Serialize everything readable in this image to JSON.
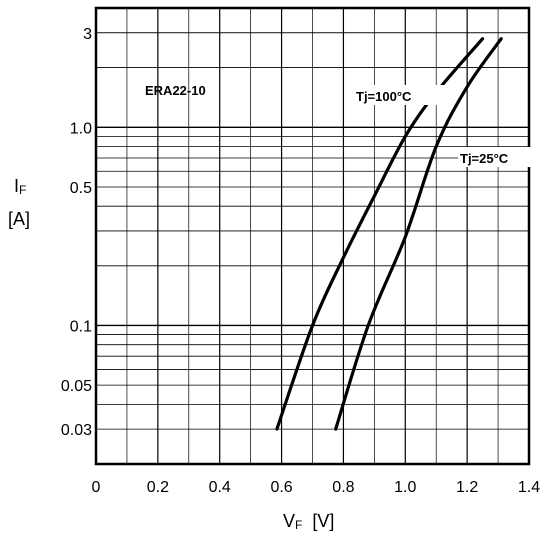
{
  "chart_data": {
    "type": "line",
    "xlabel": "V",
    "xlabel_sub": "F",
    "xunit": "[V]",
    "ylabel": "I",
    "ylabel_sub": "F",
    "yunit": "[A]",
    "xlim": [
      0,
      1.4
    ],
    "ylim": [
      0.02,
      4
    ],
    "yscale": "log",
    "grid": true,
    "x_ticks": [
      "0",
      "0.2",
      "0.4",
      "0.6",
      "0.8",
      "1.0",
      "1.2",
      "1.4"
    ],
    "y_ticks": [
      {
        "value": 3,
        "label": "3"
      },
      {
        "value": 1,
        "label": "1.0"
      },
      {
        "value": 0.5,
        "label": "0.5"
      },
      {
        "value": 0.1,
        "label": "0.1"
      },
      {
        "value": 0.05,
        "label": "0.05"
      },
      {
        "value": 0.03,
        "label": "0.03"
      }
    ],
    "annotations": {
      "device": "ERA22-10",
      "series1_label": "Tj=100°C",
      "series2_label": "Tj=25°C"
    },
    "series": [
      {
        "name": "Tj=100°C",
        "points": [
          [
            0.585,
            0.03
          ],
          [
            0.7,
            0.1
          ],
          [
            0.8,
            0.22
          ],
          [
            0.9,
            0.45
          ],
          [
            1.0,
            0.9
          ],
          [
            1.1,
            1.5
          ],
          [
            1.25,
            2.8
          ]
        ]
      },
      {
        "name": "Tj=25°C",
        "points": [
          [
            0.775,
            0.03
          ],
          [
            0.88,
            0.1
          ],
          [
            1.0,
            0.28
          ],
          [
            1.1,
            0.8
          ],
          [
            1.2,
            1.6
          ],
          [
            1.31,
            2.8
          ]
        ]
      }
    ]
  }
}
